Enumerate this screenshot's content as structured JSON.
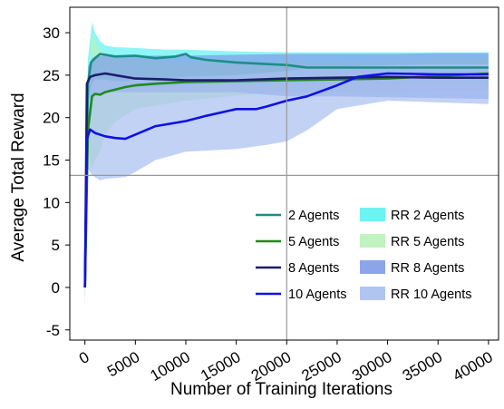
{
  "chart_data": {
    "type": "line",
    "title": "",
    "xlabel": "Number of Training Iterations",
    "ylabel": "Average Total Reward",
    "xlim": [
      -1500,
      41000
    ],
    "ylim": [
      -6.2,
      33
    ],
    "xticks": [
      0,
      5000,
      10000,
      15000,
      20000,
      25000,
      30000,
      35000,
      40000
    ],
    "yticks": [
      -5,
      0,
      5,
      10,
      15,
      20,
      25,
      30
    ],
    "xtick_rotation": -30,
    "grid": false,
    "crosshair": {
      "x": 20000,
      "y": 13.2
    },
    "legend": {
      "placement": "lower-right",
      "columns": 2
    },
    "series": [
      {
        "name": "2 Agents",
        "color": "#1a8f86",
        "x": [
          0,
          300,
          600,
          1000,
          1500,
          2000,
          3000,
          5000,
          7000,
          9000,
          10000,
          10500,
          12000,
          15000,
          20000,
          22000,
          25000,
          30000,
          35000,
          40000
        ],
        "y": [
          0,
          24,
          26.5,
          27,
          27.5,
          27.4,
          27.2,
          27.3,
          27,
          27.2,
          27.5,
          27.1,
          26.8,
          26.5,
          26.2,
          25.9,
          25.9,
          25.9,
          25.9,
          25.9
        ]
      },
      {
        "name": "5 Agents",
        "color": "#1f8a1f",
        "x": [
          0,
          300,
          700,
          1000,
          1500,
          2000,
          3000,
          4000,
          5000,
          7000,
          10000,
          15000,
          20000,
          25000,
          30000,
          35000,
          40000
        ],
        "y": [
          0,
          18.5,
          22.5,
          22.8,
          22.7,
          23,
          23.3,
          23.6,
          23.8,
          24,
          24.2,
          24.3,
          24.4,
          24.5,
          24.6,
          24.9,
          25.2
        ]
      },
      {
        "name": "8 Agents",
        "color": "#1c1c6e",
        "x": [
          0,
          200,
          500,
          1000,
          2000,
          3000,
          5000,
          8000,
          10000,
          15000,
          20000,
          25000,
          30000,
          35000,
          40000
        ],
        "y": [
          0,
          24,
          24.8,
          25,
          25.2,
          25,
          24.6,
          24.5,
          24.4,
          24.4,
          24.6,
          24.7,
          24.8,
          24.7,
          24.7
        ]
      },
      {
        "name": "10 Agents",
        "color": "#1010e6",
        "x": [
          0,
          200,
          500,
          1000,
          2000,
          3000,
          4000,
          5000,
          7000,
          10000,
          12000,
          15000,
          17000,
          18000,
          20000,
          22000,
          25000,
          27000,
          30000,
          35000,
          40000
        ],
        "y": [
          0,
          17.5,
          18.6,
          18.2,
          17.8,
          17.6,
          17.5,
          18,
          19,
          19.6,
          20.2,
          21,
          21,
          21.3,
          22,
          22.5,
          23.8,
          24.8,
          25.2,
          25.1,
          25.1
        ]
      }
    ],
    "bands": [
      {
        "name": "RR 2 Agents",
        "color": "#5ef2f2",
        "x": [
          0,
          300,
          700,
          1000,
          1500,
          2000,
          3000,
          5000,
          8000,
          10000,
          15000,
          20000,
          25000,
          30000,
          35000,
          40000
        ],
        "upper": [
          1,
          27,
          31.2,
          30,
          29,
          28.5,
          28.3,
          28.2,
          28,
          28,
          27.8,
          27.7,
          27.7,
          27.7,
          27.7,
          27.7
        ],
        "lower": [
          -1,
          22,
          22.5,
          22.5,
          22.8,
          23,
          23.2,
          23.5,
          23.7,
          23.8,
          23.9,
          24,
          24,
          24,
          24,
          24
        ]
      },
      {
        "name": "RR 5 Agents",
        "color": "#b9f2b9",
        "x": [
          0,
          300,
          700,
          1000,
          1500,
          2000,
          3000,
          5000,
          10000,
          15000,
          20000,
          25000,
          30000,
          35000,
          40000
        ],
        "upper": [
          0.8,
          22,
          30,
          29,
          28,
          27.5,
          27,
          26.8,
          26.6,
          26.5,
          26.5,
          26.5,
          26.6,
          26.8,
          27
        ],
        "lower": [
          -0.8,
          16,
          14,
          15,
          16,
          18,
          19.5,
          21,
          22,
          22.6,
          23,
          23,
          23,
          23.2,
          23.3
        ]
      },
      {
        "name": "RR 8 Agents",
        "color": "#7f9be8",
        "x": [
          0,
          300,
          700,
          1000,
          2000,
          5000,
          10000,
          15000,
          20000,
          25000,
          30000,
          35000,
          40000
        ],
        "upper": [
          1,
          26,
          27,
          27.2,
          27.3,
          27.3,
          27.3,
          27.4,
          27.5,
          27.5,
          27.5,
          27.6,
          27.6
        ],
        "lower": [
          -1,
          22,
          22.5,
          22.8,
          23,
          23,
          23,
          23,
          22.5,
          22.5,
          22.4,
          22.3,
          22.2
        ]
      },
      {
        "name": "RR 10 Agents",
        "color": "#a8bff0",
        "x": [
          0,
          300,
          700,
          1000,
          1500,
          2000,
          3000,
          4000,
          5000,
          7000,
          10000,
          15000,
          18000,
          20000,
          22000,
          25000,
          30000,
          35000,
          40000
        ],
        "upper": [
          1.5,
          22,
          24,
          24.5,
          24.5,
          24.5,
          24.3,
          24.3,
          24.5,
          24.6,
          24.8,
          25,
          25.3,
          25.5,
          25.8,
          26,
          26.2,
          26.3,
          26.3
        ],
        "lower": [
          -2.5,
          14,
          13.2,
          13,
          12.6,
          12.8,
          12.9,
          13,
          13.6,
          15,
          16,
          16.3,
          16.8,
          17.2,
          18.5,
          21,
          22,
          21.8,
          21.6
        ]
      }
    ]
  }
}
